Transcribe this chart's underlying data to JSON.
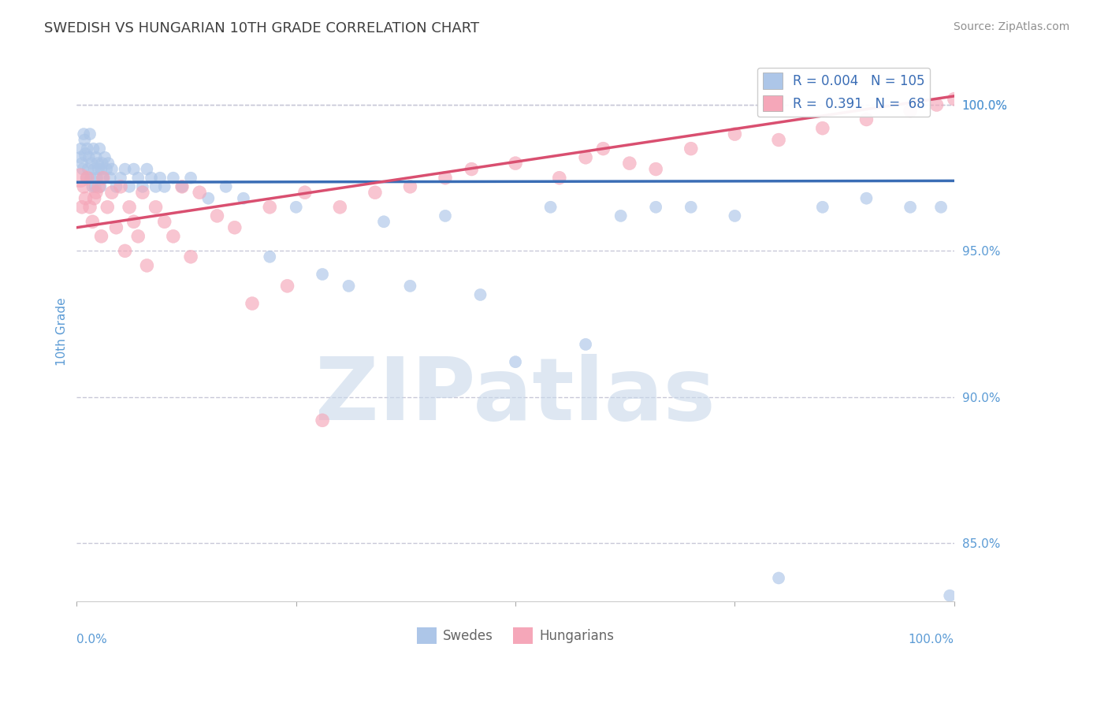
{
  "title": "SWEDISH VS HUNGARIAN 10TH GRADE CORRELATION CHART",
  "source": "Source: ZipAtlas.com",
  "ylabel": "10th Grade",
  "xlim": [
    0.0,
    100.0
  ],
  "ylim": [
    83.0,
    101.5
  ],
  "yticks": [
    85.0,
    90.0,
    95.0,
    100.0
  ],
  "legend_R_swedish": "0.004",
  "legend_N_swedish": "105",
  "legend_R_hungarian": "0.391",
  "legend_N_hungarian": "68",
  "swedish_color": "#adc6e8",
  "hungarian_color": "#f5a7b9",
  "trend_swedish_color": "#3a6db5",
  "trend_hungarian_color": "#d94f70",
  "grid_color": "#c8c8d8",
  "watermark_text": "ZIPatlas",
  "watermark_color": "#c8d8ea",
  "background_color": "#ffffff",
  "title_color": "#404040",
  "axis_label_color": "#5b9bd5",
  "source_color": "#909090",
  "swedish_trend_y0": 97.35,
  "swedish_trend_y1": 97.4,
  "hungarian_trend_y0": 95.8,
  "hungarian_trend_y1": 100.3,
  "swedish_x": [
    0.4,
    0.5,
    0.6,
    0.7,
    0.8,
    0.9,
    1.0,
    1.1,
    1.2,
    1.3,
    1.4,
    1.5,
    1.6,
    1.7,
    1.8,
    1.9,
    2.0,
    2.1,
    2.2,
    2.3,
    2.4,
    2.5,
    2.6,
    2.7,
    2.8,
    2.9,
    3.0,
    3.2,
    3.4,
    3.6,
    3.8,
    4.0,
    4.5,
    5.0,
    5.5,
    6.0,
    6.5,
    7.0,
    7.5,
    8.0,
    8.5,
    9.0,
    9.5,
    10.0,
    11.0,
    12.0,
    13.0,
    15.0,
    17.0,
    19.0,
    22.0,
    25.0,
    28.0,
    31.0,
    35.0,
    38.0,
    42.0,
    46.0,
    50.0,
    54.0,
    58.0,
    62.0,
    66.0,
    70.0,
    75.0,
    80.0,
    85.0,
    90.0,
    95.0,
    98.5,
    99.5
  ],
  "swedish_y": [
    98.2,
    98.5,
    98.0,
    97.8,
    99.0,
    98.8,
    98.3,
    97.5,
    98.5,
    97.8,
    98.2,
    99.0,
    97.5,
    98.0,
    97.2,
    98.5,
    97.8,
    97.2,
    98.2,
    97.5,
    98.0,
    97.8,
    98.5,
    97.2,
    97.8,
    98.0,
    97.5,
    98.2,
    97.8,
    98.0,
    97.5,
    97.8,
    97.2,
    97.5,
    97.8,
    97.2,
    97.8,
    97.5,
    97.2,
    97.8,
    97.5,
    97.2,
    97.5,
    97.2,
    97.5,
    97.2,
    97.5,
    96.8,
    97.2,
    96.8,
    94.8,
    96.5,
    94.2,
    93.8,
    96.0,
    93.8,
    96.2,
    93.5,
    91.2,
    96.5,
    91.8,
    96.2,
    96.5,
    96.5,
    96.2,
    83.8,
    96.5,
    96.8,
    96.5,
    96.5,
    83.2
  ],
  "swedish_sizes": [
    120,
    120,
    120,
    120,
    120,
    120,
    150,
    120,
    120,
    120,
    120,
    120,
    120,
    120,
    120,
    120,
    120,
    120,
    120,
    120,
    120,
    120,
    120,
    120,
    120,
    120,
    120,
    120,
    120,
    120,
    120,
    120,
    120,
    120,
    120,
    120,
    120,
    120,
    120,
    120,
    120,
    120,
    120,
    120,
    120,
    120,
    120,
    120,
    120,
    120,
    120,
    120,
    120,
    120,
    120,
    120,
    120,
    120,
    120,
    120,
    120,
    120,
    120,
    120,
    120,
    120,
    120,
    120,
    120,
    120,
    120
  ],
  "hungarian_x": [
    0.4,
    0.6,
    0.8,
    1.0,
    1.2,
    1.5,
    1.8,
    2.0,
    2.2,
    2.5,
    2.8,
    3.0,
    3.5,
    4.0,
    4.5,
    5.0,
    5.5,
    6.0,
    6.5,
    7.0,
    7.5,
    8.0,
    9.0,
    10.0,
    11.0,
    12.0,
    13.0,
    14.0,
    16.0,
    18.0,
    20.0,
    22.0,
    24.0,
    26.0,
    28.0,
    30.0,
    34.0,
    38.0,
    42.0,
    45.0,
    50.0,
    55.0,
    58.0,
    60.0,
    63.0,
    66.0,
    70.0,
    75.0,
    80.0,
    85.0,
    90.0,
    95.0,
    98.0,
    100.0
  ],
  "hungarian_y": [
    97.5,
    96.5,
    97.2,
    96.8,
    97.5,
    96.5,
    96.0,
    96.8,
    97.0,
    97.2,
    95.5,
    97.5,
    96.5,
    97.0,
    95.8,
    97.2,
    95.0,
    96.5,
    96.0,
    95.5,
    97.0,
    94.5,
    96.5,
    96.0,
    95.5,
    97.2,
    94.8,
    97.0,
    96.2,
    95.8,
    93.2,
    96.5,
    93.8,
    97.0,
    89.2,
    96.5,
    97.0,
    97.2,
    97.5,
    97.8,
    98.0,
    97.5,
    98.2,
    98.5,
    98.0,
    97.8,
    98.5,
    99.0,
    98.8,
    99.2,
    99.5,
    99.8,
    100.0,
    100.2
  ],
  "hungarian_sizes": [
    300,
    150,
    150,
    150,
    150,
    150,
    150,
    150,
    150,
    150,
    150,
    150,
    150,
    150,
    150,
    150,
    150,
    150,
    150,
    150,
    150,
    150,
    150,
    150,
    150,
    150,
    150,
    150,
    150,
    150,
    150,
    150,
    150,
    150,
    150,
    150,
    150,
    150,
    150,
    150,
    150,
    150,
    150,
    150,
    150,
    150,
    150,
    150,
    150,
    150,
    150,
    150,
    150,
    150
  ]
}
